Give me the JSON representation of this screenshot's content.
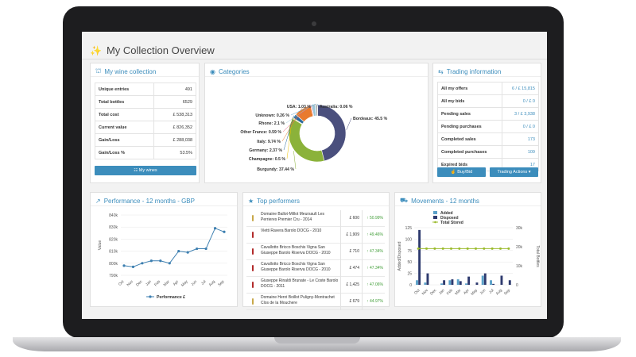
{
  "page": {
    "title": "My Collection Overview"
  },
  "collection": {
    "title": "My wine collection",
    "rows": [
      {
        "label": "Unique entries",
        "value": "491"
      },
      {
        "label": "Total bottles",
        "value": "6529"
      },
      {
        "label": "Total cost",
        "value": "£ 538,313"
      },
      {
        "label": "Current value",
        "value": "£ 826,352"
      },
      {
        "label": "Gain/Loss",
        "value": "£ 288,038"
      },
      {
        "label": "Gain/Loss %",
        "value": "53.5%"
      }
    ],
    "button": "My wines"
  },
  "categories": {
    "title": "Categories",
    "slices": [
      {
        "label": "Bordeaux: 45.5 %",
        "value": 45.5,
        "color": "#4a4f7d"
      },
      {
        "label": "Burgundy: 37.44 %",
        "value": 37.44,
        "color": "#8bb23a"
      },
      {
        "label": "Champagne: 0.5 %",
        "value": 0.5,
        "color": "#f0c400"
      },
      {
        "label": "Germany: 2.37 %",
        "value": 2.37,
        "color": "#2b6a9c"
      },
      {
        "label": "Italy: 9.74 %",
        "value": 9.74,
        "color": "#e87b2e"
      },
      {
        "label": "Other France: 0.59 %",
        "value": 0.59,
        "color": "#e85a7a"
      },
      {
        "label": "Rhone: 2.1 %",
        "value": 2.1,
        "color": "#9bc6d8"
      },
      {
        "label": "Unknown: 0.26 %",
        "value": 0.26,
        "color": "#5ba1c9"
      },
      {
        "label": "USA: 1.03 %",
        "value": 1.03,
        "color": "#a0a0a0"
      },
      {
        "label": "Australia: 0.06 %",
        "value": 0.06,
        "color": "#6bb0d6"
      }
    ]
  },
  "trading": {
    "title": "Trading information",
    "rows": [
      {
        "label": "All my offers",
        "value": "6  / £ 15,815"
      },
      {
        "label": "All my bids",
        "value": "0  / £ 0"
      },
      {
        "label": "Pending sales",
        "value": "3  / £ 3,938"
      },
      {
        "label": "Pending purchases",
        "value": "0  / £ 0"
      },
      {
        "label": "Completed sales",
        "value": "173"
      },
      {
        "label": "Completed purchases",
        "value": "109"
      },
      {
        "label": "Expired bids",
        "value": "17"
      }
    ],
    "buy_label": "Buy/Bid",
    "actions_label": "Trading Actions ▾"
  },
  "performance": {
    "title": "Performance - 12 months - GBP",
    "legend": "Performance £",
    "ylabel": "Value"
  },
  "top": {
    "title": "Top performers",
    "items": [
      {
        "name": "Domaine Ballot-Millot Meursault Les Perrieres Premier Cru - 2014",
        "price": "£ 600",
        "change": "50.99%",
        "color": "#c8a84a"
      },
      {
        "name": "Vietti Ravera Barolo DOCG - 2010",
        "price": "£ 1,909",
        "change": "49.46%",
        "color": "#b22a2a"
      },
      {
        "name": "Cavallotto Bricco Boschis Vigna San Giuseppe Barolo Riserva DOCG - 2010",
        "price": "£ 710",
        "change": "47.34%",
        "color": "#b22a2a"
      },
      {
        "name": "Cavallotto Bricco Boschis Vigna San Giuseppe Barolo Riserva DOCG - 2010",
        "price": "£ 474",
        "change": "47.34%",
        "color": "#b22a2a"
      },
      {
        "name": "Giuseppe Rinaldi Brunate - Le Coste Barolo DOCG - 2011",
        "price": "£ 1,425",
        "change": "47.06%",
        "color": "#b22a2a"
      },
      {
        "name": "Domaine Henri Boillot Puligny-Montrachet Clos de la Mouchere",
        "price": "£ 679",
        "change": "44.97%",
        "color": "#c8a84a"
      }
    ]
  },
  "movements": {
    "title": "Movements - 12 months",
    "legend": [
      "Added",
      "Disposed",
      "Total Stored"
    ],
    "ylabel_left": "Added/Disposed",
    "ylabel_right": "Total Bottles",
    "colors": {
      "added": "#5ba1c9",
      "disposed": "#2e3a6e",
      "total": "#9bbb2e"
    }
  },
  "chart_data": [
    {
      "type": "line",
      "title": "Performance - 12 months - GBP",
      "ylabel": "Value",
      "categories": [
        "Oct",
        "Nov",
        "Dec",
        "Jan",
        "Feb",
        "Mar",
        "Apr",
        "May",
        "Jun",
        "Jul",
        "Aug",
        "Sep"
      ],
      "yticks": [
        "790k",
        "800k",
        "810k",
        "820k",
        "830k",
        "840k"
      ],
      "ylim": [
        790000,
        840000
      ],
      "series": [
        {
          "name": "Performance £",
          "values": [
            798000,
            797000,
            800000,
            802000,
            802000,
            800000,
            810000,
            809000,
            812000,
            812000,
            829000,
            826000
          ]
        }
      ]
    },
    {
      "type": "bar",
      "title": "Movements - 12 months",
      "categories": [
        "Oct",
        "Nov",
        "Dec",
        "Jan",
        "Feb",
        "Mar",
        "Apr",
        "May",
        "Jun",
        "Jul",
        "Aug",
        "Sep"
      ],
      "yticks_left": [
        "0",
        "25",
        "50",
        "75",
        "100",
        "125"
      ],
      "yticks_right": [
        "0",
        "10k",
        "20k",
        "30k"
      ],
      "ylim_left": [
        0,
        125
      ],
      "ylim_right": [
        0,
        30000
      ],
      "series": [
        {
          "name": "Added",
          "values": [
            10,
            5,
            0,
            3,
            10,
            12,
            3,
            0,
            20,
            10,
            0,
            0
          ]
        },
        {
          "name": "Disposed",
          "values": [
            120,
            25,
            0,
            10,
            12,
            8,
            18,
            5,
            25,
            2,
            20,
            10
          ]
        },
        {
          "name": "Total Stored",
          "values": [
            19000,
            19000,
            19000,
            19000,
            19000,
            19000,
            19000,
            19000,
            19000,
            19000,
            19000,
            19000
          ]
        }
      ]
    }
  ]
}
